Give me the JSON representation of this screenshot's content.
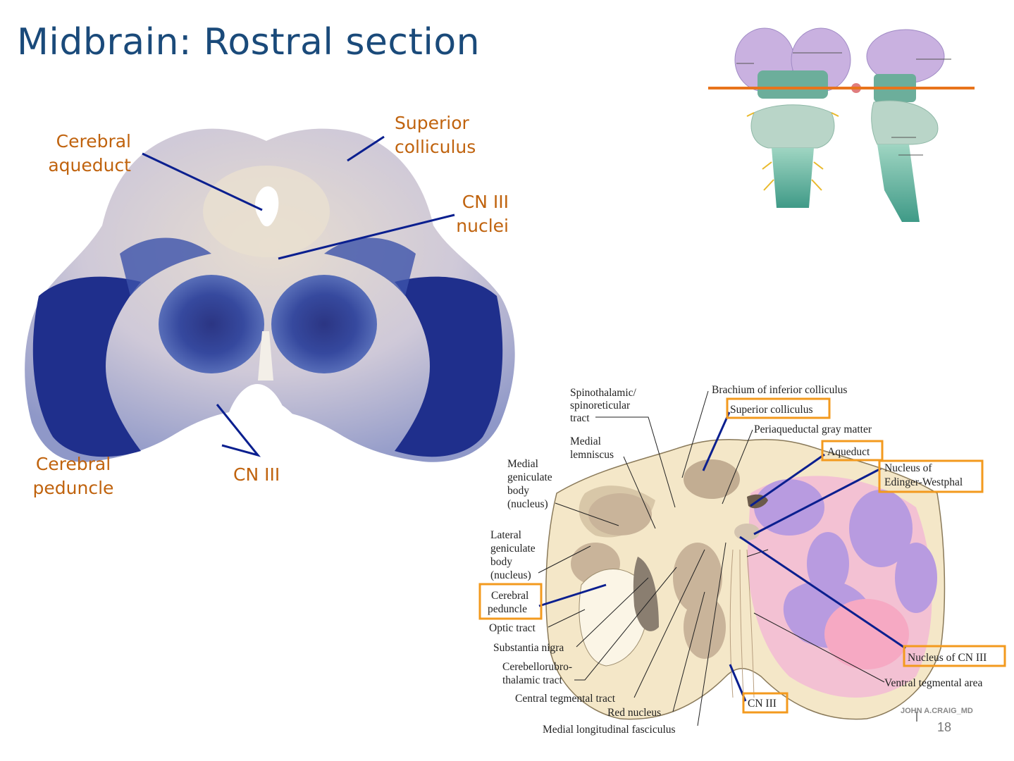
{
  "slide": {
    "title": "Midbrain: Rostral section",
    "page_number": "18"
  },
  "photo_labels": {
    "cerebral_aqueduct": [
      "Cerebral",
      "aqueduct"
    ],
    "superior_colliculus": [
      "Superior",
      "colliculus"
    ],
    "cn3_nuclei": [
      "CN III",
      "nuclei"
    ],
    "cerebral_peduncle": [
      "Cerebral",
      "peduncle"
    ],
    "cn3": "CN III"
  },
  "diagram_labels": {
    "spinothalamic": [
      "Spinothalamic/",
      "spinoreticular",
      "tract"
    ],
    "brachium": "Brachium of inferior colliculus",
    "superior_colliculus": "Superior colliculus",
    "periaqueductal": "Periaqueductal gray matter",
    "medial_lemniscus": [
      "Medial",
      "lemniscus"
    ],
    "aqueduct": "Aqueduct",
    "edinger": [
      "Nucleus of",
      "Edinger-Westphal"
    ],
    "medial_geniculate": [
      "Medial",
      "geniculate",
      "body",
      "(nucleus)"
    ],
    "lateral_geniculate": [
      "Lateral",
      "geniculate",
      "body",
      "(nucleus)"
    ],
    "cerebral_peduncle": [
      "Cerebral",
      "peduncle"
    ],
    "optic_tract": "Optic tract",
    "substantia_nigra": "Substantia nigra",
    "cerebellorubro": [
      "Cerebellorubro-",
      "thalamic tract"
    ],
    "central_tegmental": "Central tegmental tract",
    "red_nucleus": "Red nucleus",
    "mlf": "Medial longitudinal fasciculus",
    "nucleus_cn3": "Nucleus of CN III",
    "ventral_tegmental": "Ventral tegmental area",
    "cn3": "CN III",
    "credit": "JOHN A.CRAIG_MD"
  },
  "colors": {
    "title": "#1a4a7a",
    "orange_label": "#c0630e",
    "pointer_blue": "#0a1f8f",
    "highlight_box": "#f39a1e",
    "stain_blue": "#1e2f8a"
  }
}
